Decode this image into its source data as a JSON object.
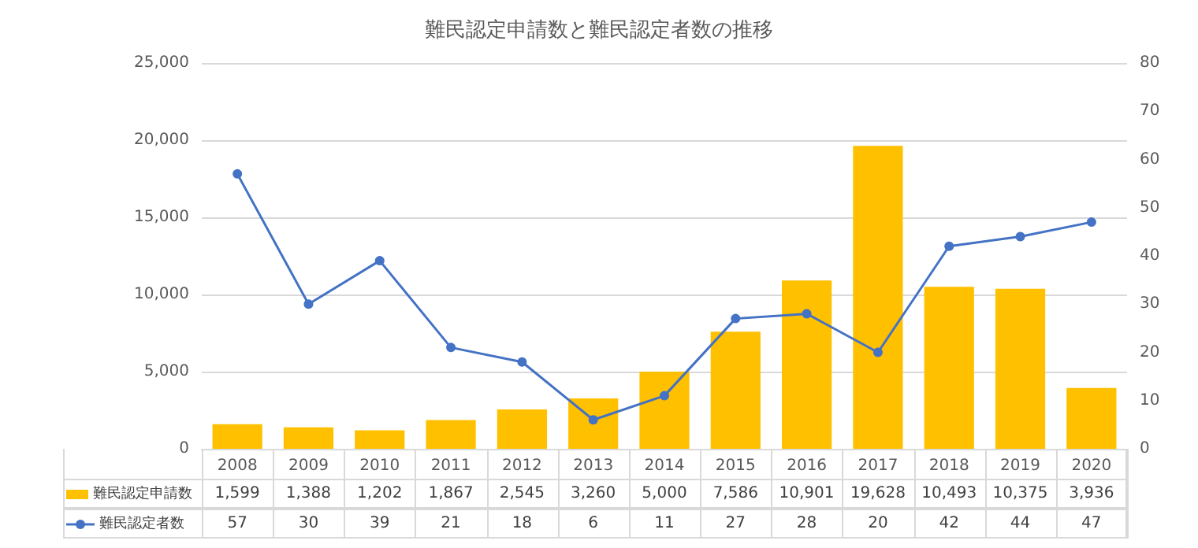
{
  "chart_data": {
    "type": "bar",
    "title": "難民認定申請数と難民認定者数の推移",
    "categories": [
      "2008",
      "2009",
      "2010",
      "2011",
      "2012",
      "2013",
      "2014",
      "2015",
      "2016",
      "2017",
      "2018",
      "2019",
      "2020"
    ],
    "series": [
      {
        "name": "難民認定申請数",
        "color": "#ffc000",
        "values": [
          1599,
          1388,
          1202,
          1867,
          2545,
          3260,
          5000,
          7586,
          10901,
          19628,
          10493,
          10375,
          3936
        ],
        "value_labels": [
          "1,599",
          "1,388",
          "1,202",
          "1,867",
          "2,545",
          "3,260",
          "5,000",
          "7,586",
          "10,901",
          "19,628",
          "10,493",
          "10,375",
          "3,936"
        ]
      },
      {
        "name": "難民認定者数",
        "type": "line",
        "axis": "y2",
        "color": "#4472c4",
        "values": [
          57,
          30,
          39,
          21,
          18,
          6,
          11,
          27,
          28,
          20,
          42,
          44,
          47
        ],
        "value_labels": [
          "57",
          "30",
          "39",
          "21",
          "18",
          "6",
          "11",
          "27",
          "28",
          "20",
          "42",
          "44",
          "47"
        ]
      }
    ],
    "ylim": [
      0,
      25000
    ],
    "yticks": [
      {
        "value": 0,
        "label": "0"
      },
      {
        "value": 5000,
        "label": "5,000"
      },
      {
        "value": 10000,
        "label": "10,000"
      },
      {
        "value": 15000,
        "label": "15,000"
      },
      {
        "value": 20000,
        "label": "20,000"
      },
      {
        "value": 25000,
        "label": "25,000"
      }
    ],
    "y2lim": [
      0,
      80
    ],
    "y2ticks": [
      0,
      10,
      20,
      30,
      40,
      50,
      60,
      70,
      80
    ],
    "grid": "y",
    "legend": "bottom left",
    "marker": "circle",
    "line_style": "solid"
  }
}
